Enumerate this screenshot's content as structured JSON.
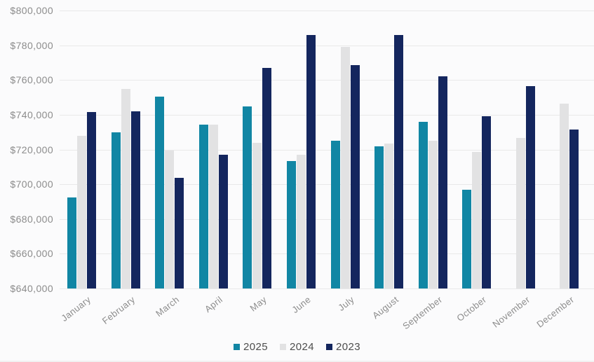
{
  "chart_data": {
    "type": "bar",
    "title": "",
    "xlabel": "",
    "ylabel": "",
    "categories": [
      "January",
      "February",
      "March",
      "April",
      "May",
      "June",
      "July",
      "August",
      "September",
      "October",
      "November",
      "December"
    ],
    "series": [
      {
        "name": "2025",
        "color": "#1186A4",
        "values": [
          692500,
          730000,
          750500,
          734500,
          745000,
          713500,
          725000,
          722000,
          736000,
          697000,
          null,
          null
        ]
      },
      {
        "name": "2024",
        "color": "#E2E2E3",
        "values": [
          728000,
          755000,
          719500,
          734500,
          724000,
          717000,
          779000,
          723500,
          725000,
          718500,
          726500,
          746500
        ]
      },
      {
        "name": "2023",
        "color": "#14265E",
        "values": [
          741500,
          742000,
          703500,
          717000,
          767000,
          786000,
          768500,
          786000,
          762000,
          739000,
          756500,
          731500
        ]
      }
    ],
    "ylim": [
      640000,
      800000
    ],
    "y_ticks": [
      {
        "value": 800000,
        "label": "$800,000"
      },
      {
        "value": 780000,
        "label": "$780,000"
      },
      {
        "value": 760000,
        "label": "$760,000"
      },
      {
        "value": 740000,
        "label": "$740,000"
      },
      {
        "value": 720000,
        "label": "$720,000"
      },
      {
        "value": 700000,
        "label": "$700,000"
      },
      {
        "value": 680000,
        "label": "$680,000"
      },
      {
        "value": 660000,
        "label": "$660,000"
      },
      {
        "value": 640000,
        "label": "$640,000"
      }
    ],
    "grid": "horizontal",
    "legend_position": "bottom",
    "legend_labels": [
      "2025",
      "2024",
      "2023"
    ]
  },
  "colors": {
    "background": "#FBFBFC",
    "gridline": "#E9E9E9",
    "axis_text": "#8C8C8C",
    "legend_text": "#4D4D4D",
    "series_2025": "#1186A4",
    "series_2024": "#E2E2E3",
    "series_2023": "#14265E"
  }
}
